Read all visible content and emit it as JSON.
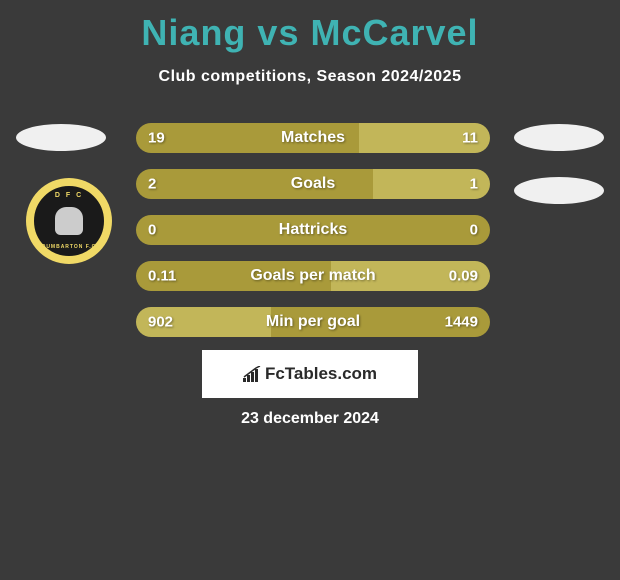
{
  "title_color": "#3fb3b3",
  "title": "Niang vs McCarvel",
  "subtitle": "Club competitions, Season 2024/2025",
  "date": "23 december 2024",
  "branding": "FcTables.com",
  "club_top": "D F C",
  "club_bottom": "DUMBARTON F.C",
  "colors": {
    "left_main": "#a99a3a",
    "left_light": "#c2b659",
    "right_main": "#a99a3a",
    "right_light": "#c2b659",
    "background": "#3a3a3a"
  },
  "stats": [
    {
      "label": "Matches",
      "left_val": "19",
      "right_val": "11",
      "left_pct": 63,
      "left_bg": "#a99a3a",
      "right_bg": "#c2b659"
    },
    {
      "label": "Goals",
      "left_val": "2",
      "right_val": "1",
      "left_pct": 67,
      "left_bg": "#a99a3a",
      "right_bg": "#c2b659"
    },
    {
      "label": "Hattricks",
      "left_val": "0",
      "right_val": "0",
      "left_pct": 50,
      "left_bg": "#a99a3a",
      "right_bg": "#a99a3a"
    },
    {
      "label": "Goals per match",
      "left_val": "0.11",
      "right_val": "0.09",
      "left_pct": 55,
      "left_bg": "#a99a3a",
      "right_bg": "#c2b659"
    },
    {
      "label": "Min per goal",
      "left_val": "902",
      "right_val": "1449",
      "left_pct": 38,
      "left_bg": "#c2b659",
      "right_bg": "#a99a3a"
    }
  ]
}
